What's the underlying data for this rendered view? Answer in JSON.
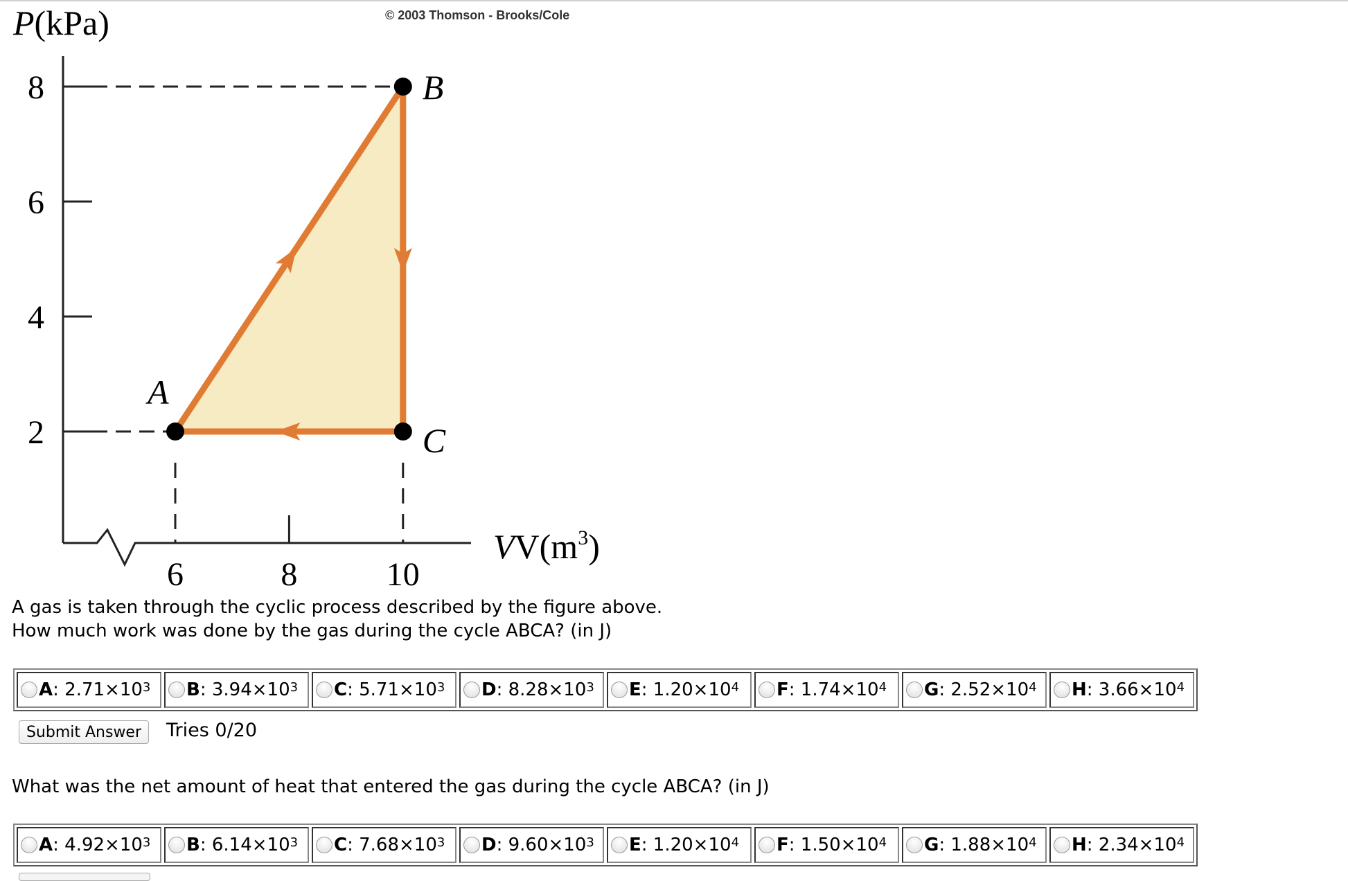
{
  "figure": {
    "copyright": "© 2003 Thomson - Brooks/Cole",
    "y_axis_label": "P(kPa)",
    "x_axis_label_base": "V(m",
    "x_axis_label_exp": "3",
    "x_axis_label_close": ")",
    "y_ticks": [
      "8",
      "6",
      "4",
      "2"
    ],
    "x_ticks": [
      "6",
      "8",
      "10"
    ],
    "points": [
      {
        "label": "A",
        "V": 6,
        "P": 2
      },
      {
        "label": "B",
        "V": 10,
        "P": 8
      },
      {
        "label": "C",
        "V": 10,
        "P": 2
      }
    ],
    "cycle": "A→B→C→A",
    "colors": {
      "path": "#e07b33",
      "fill": "#f7ebc4",
      "point": "#000000"
    }
  },
  "question1": {
    "line1": "A gas is taken through the cyclic process described by the figure above.",
    "line2": "How much work was done by the gas during the cycle ABCA? (in J)",
    "choices": [
      {
        "letter": "A",
        "mant": ": 2.71×10",
        "exp": "3"
      },
      {
        "letter": "B",
        "mant": ": 3.94×10",
        "exp": "3"
      },
      {
        "letter": "C",
        "mant": ": 5.71×10",
        "exp": "3"
      },
      {
        "letter": "D",
        "mant": ": 8.28×10",
        "exp": "3"
      },
      {
        "letter": "E",
        "mant": ": 1.20×10",
        "exp": "4"
      },
      {
        "letter": "F",
        "mant": ": 1.74×10",
        "exp": "4"
      },
      {
        "letter": "G",
        "mant": ": 2.52×10",
        "exp": "4"
      },
      {
        "letter": "H",
        "mant": ": 3.66×10",
        "exp": "4"
      }
    ],
    "submit_label": "Submit Answer",
    "tries": "Tries 0/20"
  },
  "question2": {
    "text": "What was the net amount of heat that entered the gas during the cycle ABCA? (in J)",
    "choices": [
      {
        "letter": "A",
        "mant": ": 4.92×10",
        "exp": "3"
      },
      {
        "letter": "B",
        "mant": ": 6.14×10",
        "exp": "3"
      },
      {
        "letter": "C",
        "mant": ": 7.68×10",
        "exp": "3"
      },
      {
        "letter": "D",
        "mant": ": 9.60×10",
        "exp": "3"
      },
      {
        "letter": "E",
        "mant": ": 1.20×10",
        "exp": "4"
      },
      {
        "letter": "F",
        "mant": ": 1.50×10",
        "exp": "4"
      },
      {
        "letter": "G",
        "mant": ": 1.88×10",
        "exp": "4"
      },
      {
        "letter": "H",
        "mant": ": 2.34×10",
        "exp": "4"
      }
    ]
  }
}
